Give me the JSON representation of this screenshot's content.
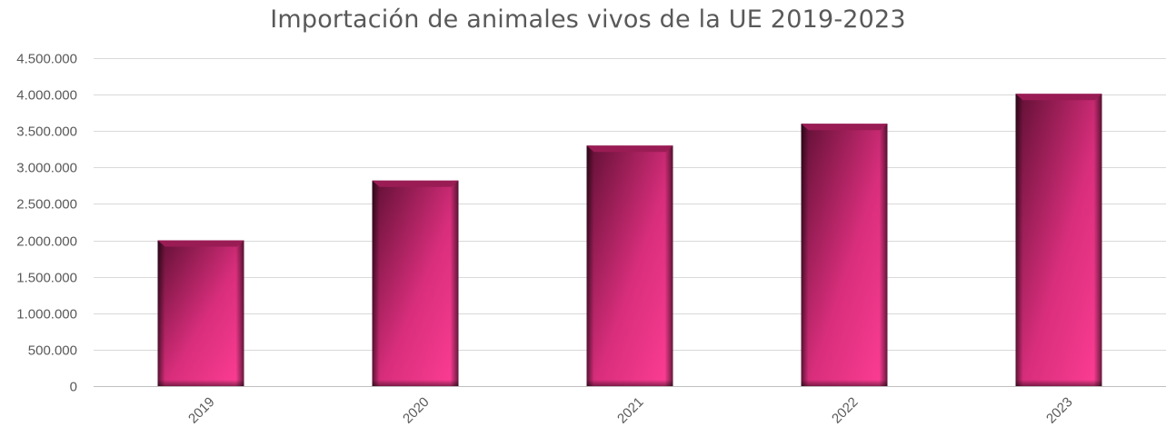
{
  "chart_data": {
    "type": "bar",
    "title": "Importación de animales vivos de la UE  2019-2023",
    "categories": [
      "2019",
      "2020",
      "2021",
      "2022",
      "2023"
    ],
    "values": [
      2000000,
      2820000,
      3300000,
      3600000,
      4010000
    ],
    "ylim": [
      0,
      4500000
    ],
    "yticks": [
      0,
      500000,
      1000000,
      1500000,
      2000000,
      2500000,
      3000000,
      3500000,
      4000000,
      4500000
    ],
    "ytick_labels": [
      "0",
      "500.000",
      "1.000.000",
      "1.500.000",
      "2.000.000",
      "2.500.000",
      "3.000.000",
      "3.500.000",
      "4.000.000",
      "4.500.000"
    ],
    "xlabel": "",
    "ylabel": "",
    "grid": true,
    "legend": "none",
    "colors": {
      "bar_light": "#ff3e95",
      "bar_mid": "#d92e7c",
      "bar_dark": "#5e0f33",
      "bar_top": "#9a1c55"
    }
  }
}
